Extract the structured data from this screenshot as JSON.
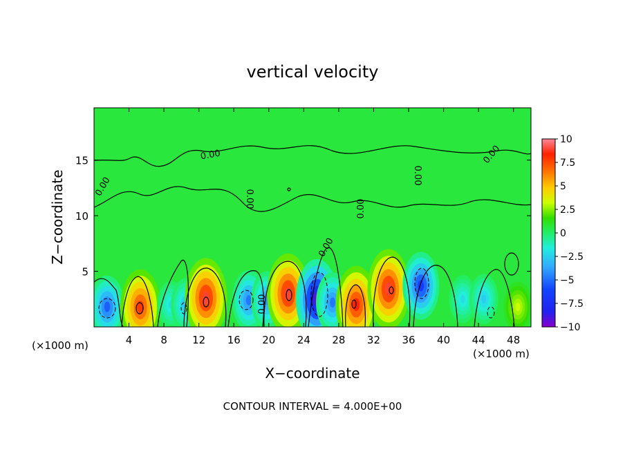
{
  "chart_data": {
    "type": "heatmap",
    "title": "vertical velocity",
    "xlabel": "X−coordinate",
    "ylabel": "Z−coordinate",
    "x_unit_left": "(×1000 m)",
    "x_unit_right": "(×1000 m)",
    "xlim": [
      0,
      50
    ],
    "ylim": [
      0,
      19.7
    ],
    "x_ticks": [
      4,
      8,
      12,
      16,
      20,
      24,
      28,
      32,
      36,
      40,
      44,
      48
    ],
    "y_ticks": [
      5,
      10,
      15
    ],
    "colorbar": {
      "min": -10,
      "max": 10,
      "ticks": [
        "10",
        "7.5",
        "5",
        "2.5",
        "0",
        "−2.5",
        "−5",
        "−7.5",
        "−10"
      ],
      "tick_values": [
        10,
        7.5,
        5,
        2.5,
        0,
        -2.5,
        -5,
        -7.5,
        -10
      ]
    },
    "background_value": 0.6,
    "cells": [
      {
        "x": 1.5,
        "z": 1.8,
        "value": -5.5
      },
      {
        "x": 5.3,
        "z": 1.8,
        "value": 8.0
      },
      {
        "x": 8.8,
        "z": 2.0,
        "value": -2.5
      },
      {
        "x": 10.5,
        "z": 2.0,
        "value": -3.5
      },
      {
        "x": 12.8,
        "z": 2.6,
        "value": 9.0
      },
      {
        "x": 17.7,
        "z": 2.4,
        "value": -5.0
      },
      {
        "x": 19.8,
        "z": 2.4,
        "value": -4.5
      },
      {
        "x": 22.2,
        "z": 3.0,
        "value": 9.0
      },
      {
        "x": 25.5,
        "z": 2.5,
        "value": -9.0
      },
      {
        "x": 27.3,
        "z": 2.2,
        "value": -5.0
      },
      {
        "x": 30.0,
        "z": 2.0,
        "value": 8.5
      },
      {
        "x": 33.7,
        "z": 3.4,
        "value": 9.0
      },
      {
        "x": 37.4,
        "z": 3.7,
        "value": -6.5
      },
      {
        "x": 42.2,
        "z": 2.5,
        "value": -2.5
      },
      {
        "x": 44.6,
        "z": 2.5,
        "value": -3.0
      },
      {
        "x": 48.5,
        "z": 1.8,
        "value": 3.0
      }
    ],
    "contour_labels": [
      "0.00",
      "0.00",
      "0.00",
      "0.00",
      "0.00",
      "0.00",
      "0.00",
      "0.00"
    ],
    "footer": "CONTOUR INTERVAL = 4.000E+00",
    "colors": {
      "frame": "#000000",
      "background": "#ffffff"
    }
  }
}
